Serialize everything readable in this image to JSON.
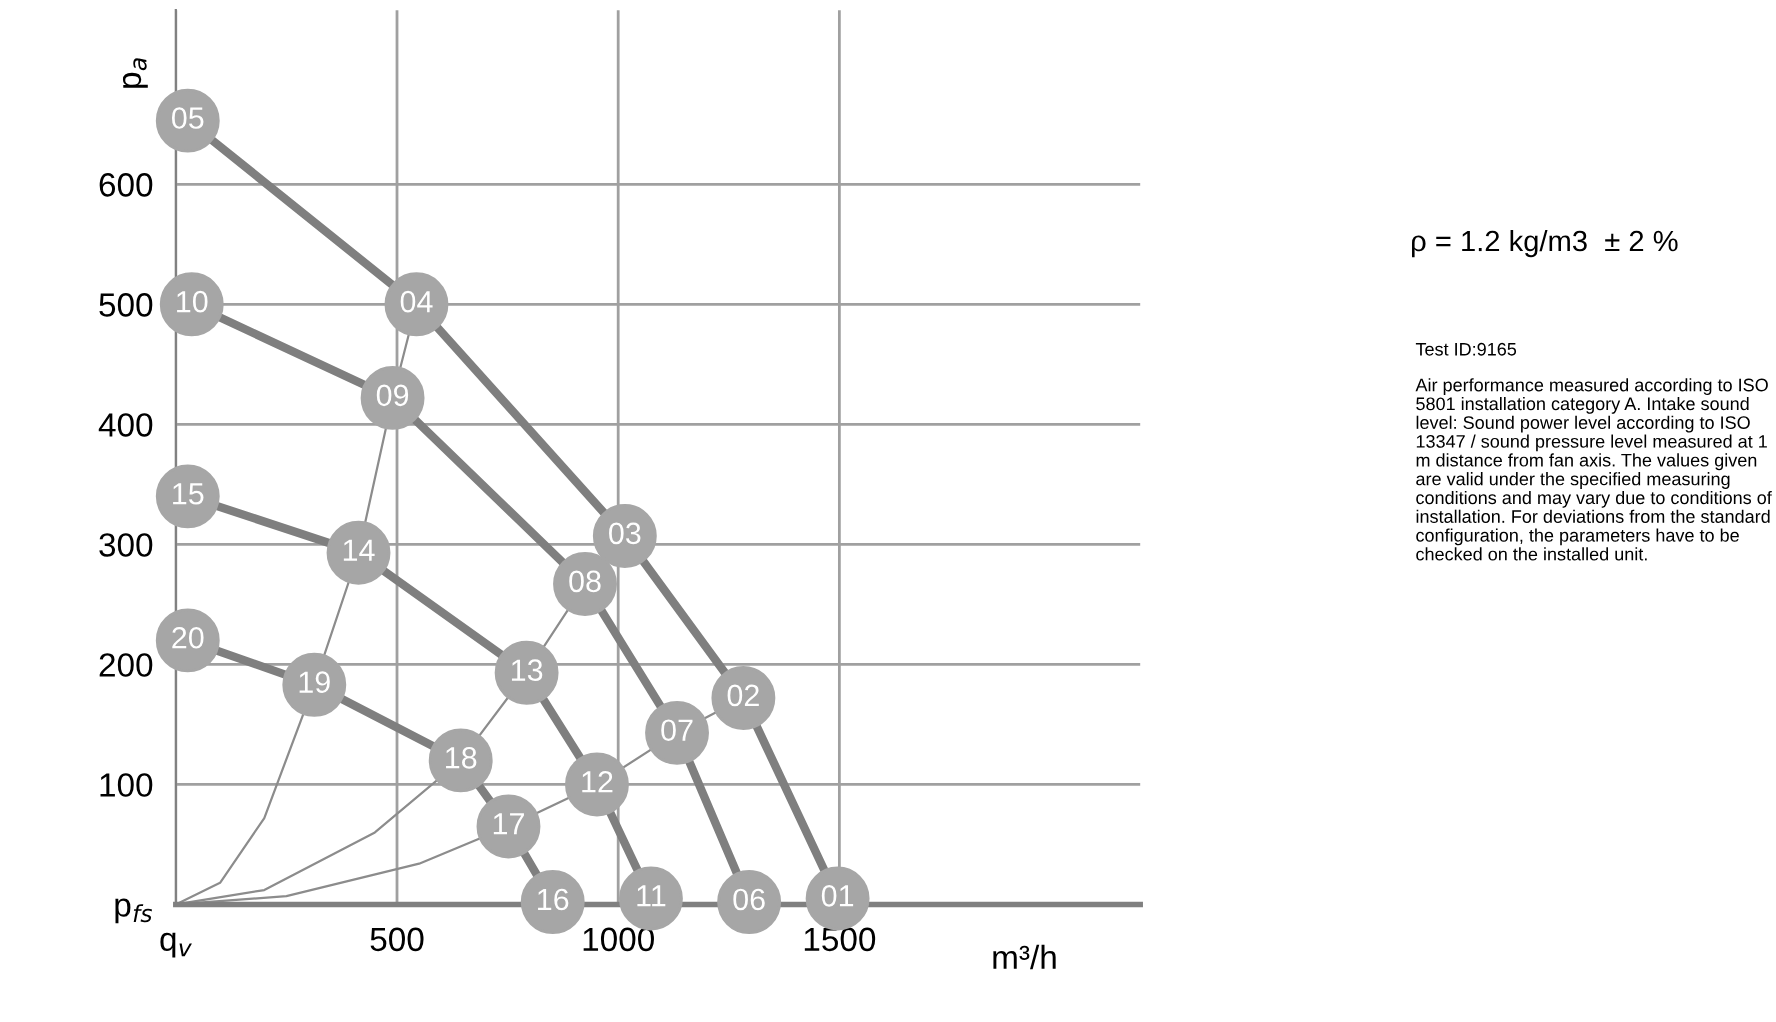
{
  "chart_data": {
    "type": "line",
    "ylabel": "p$_{a}$",
    "xlabel": "m³/h",
    "xlim": [
      0,
      2180
    ],
    "ylim": [
      0,
      745
    ],
    "xticks": [
      {
        "value": 0,
        "label": "q$_{v}$"
      },
      500,
      1000,
      1500
    ],
    "yticks": [
      {
        "value": 0,
        "label": "p$_{fs}$"
      },
      100,
      200,
      300,
      400,
      500,
      600
    ],
    "grid": true,
    "marker": "circle",
    "line_style": "solid",
    "series": [
      {
        "color": "#7f7f7f",
        "x": [
          27,
          544,
          1015,
          1283,
          1496
        ],
        "values": [
          653,
          500,
          307,
          172,
          5
        ]
      },
      {
        "color": "#7f7f7f",
        "x": [
          36,
          490,
          925,
          1133,
          1296
        ],
        "values": [
          500,
          422,
          267,
          143,
          2
        ]
      },
      {
        "color": "#7f7f7f",
        "x": [
          27,
          413,
          793,
          952,
          1074
        ],
        "values": [
          340,
          293,
          193,
          100,
          5
        ]
      },
      {
        "color": "#7f7f7f",
        "x": [
          27,
          313,
          644,
          752,
          852
        ],
        "values": [
          220,
          183,
          120,
          65,
          2
        ]
      },
      {
        "color": "#8c8c8c",
        "marker": "none",
        "x": [
          0,
          100,
          200,
          313,
          413,
          490,
          544
        ],
        "values": [
          0,
          18,
          72,
          183,
          293,
          422,
          500
        ]
      },
      {
        "color": "#8c8c8c",
        "marker": "none",
        "x": [
          0,
          200,
          450,
          644,
          793,
          925,
          1015
        ],
        "values": [
          0,
          12,
          60,
          120,
          193,
          267,
          307
        ]
      },
      {
        "color": "#8c8c8c",
        "marker": "none",
        "x": [
          0,
          250,
          550,
          752,
          952,
          1133,
          1283
        ],
        "values": [
          0,
          7,
          34,
          65,
          100,
          143,
          172
        ]
      }
    ],
    "annotations": [
      {
        "text": "05",
        "x": 27,
        "y": 653
      },
      {
        "text": "04",
        "x": 544,
        "y": 500
      },
      {
        "text": "03",
        "x": 1015,
        "y": 307
      },
      {
        "text": "02",
        "x": 1283,
        "y": 172
      },
      {
        "text": "01",
        "x": 1496,
        "y": 5
      },
      {
        "text": "10",
        "x": 36,
        "y": 500
      },
      {
        "text": "09",
        "x": 490,
        "y": 422
      },
      {
        "text": "08",
        "x": 925,
        "y": 267
      },
      {
        "text": "07",
        "x": 1133,
        "y": 143
      },
      {
        "text": "06",
        "x": 1296,
        "y": 2
      },
      {
        "text": "15",
        "x": 27,
        "y": 340
      },
      {
        "text": "14",
        "x": 413,
        "y": 293
      },
      {
        "text": "13",
        "x": 793,
        "y": 193
      },
      {
        "text": "12",
        "x": 952,
        "y": 100
      },
      {
        "text": "11",
        "x": 1074,
        "y": 5
      },
      {
        "text": "20",
        "x": 27,
        "y": 220
      },
      {
        "text": "19",
        "x": 313,
        "y": 183
      },
      {
        "text": "18",
        "x": 644,
        "y": 120
      },
      {
        "text": "17",
        "x": 752,
        "y": 65
      },
      {
        "text": "16",
        "x": 852,
        "y": 2
      },
      "ρ = 1.2 kg/m3  ± 2 %",
      "Test ID:9165",
      "Air performance measured according to ISO 5801 installation category A. Intake sound level: Sound power level according to ISO 13347 / sound pressure level measured at 1 m distance from fan axis. The values given are valid under the specified measuring conditions and may vary due to conditions of installation. For deviations from the standard configuration, the parameters have to be checked on the installed unit."
    ]
  }
}
